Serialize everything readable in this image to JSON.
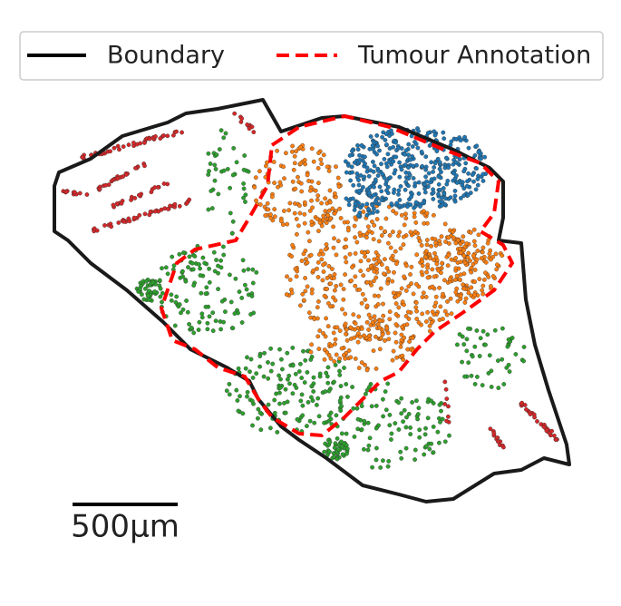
{
  "legend": {
    "items": [
      "Boundary",
      "Tumour Annotation"
    ]
  },
  "scale_bar": {
    "label": "500µm"
  }
}
